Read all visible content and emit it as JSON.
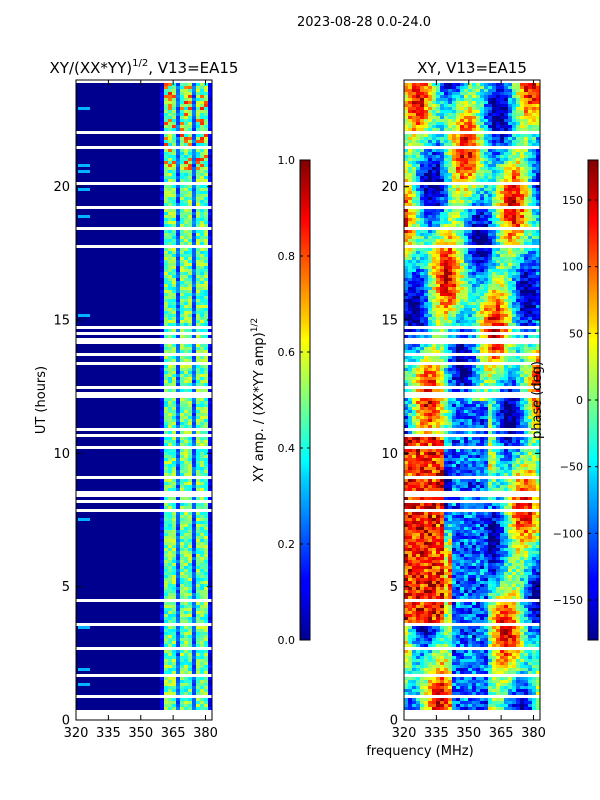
{
  "figure": {
    "suptitle": "2023-08-28 0.0-24.0",
    "shared_xlabel": "frequency (MHz)"
  },
  "chart_data": [
    {
      "type": "heatmap",
      "title_prefix": "XY/(XX*YY)",
      "title_exponent": "1/2",
      "title_suffix": ", V13=EA15",
      "ylabel": "UT (hours)",
      "x_ticks": [
        320,
        335,
        350,
        365,
        380
      ],
      "xlim": [
        320,
        383
      ],
      "y_ticks": [
        0,
        5,
        10,
        15,
        20
      ],
      "ylim": [
        0,
        24
      ],
      "colorbar": {
        "label_prefix": "XY amp. / (XX*YY amp)",
        "label_exponent": "1/2",
        "ticks": [
          0.0,
          0.2,
          0.4,
          0.6,
          0.8,
          1.0
        ],
        "tick_labels": [
          "0.0",
          "0.2",
          "0.4",
          "0.6",
          "0.8",
          "1.0"
        ],
        "range": [
          0.0,
          1.0
        ],
        "colormap": "jet"
      },
      "colors": {
        "background": "#00008f",
        "bright_band": "#7fffff",
        "gap": "#ffffff"
      }
    },
    {
      "type": "heatmap",
      "title": "XY, V13=EA15",
      "x_ticks": [
        320,
        335,
        350,
        365,
        380
      ],
      "xlim": [
        320,
        383
      ],
      "y_ticks": [
        0,
        5,
        10,
        15,
        20
      ],
      "ylim": [
        0,
        24
      ],
      "colorbar": {
        "label": "phase (deg)",
        "ticks": [
          -150,
          -100,
          -50,
          0,
          50,
          100,
          150
        ],
        "tick_labels": [
          "−150",
          "−100",
          "−50",
          "0",
          "50",
          "100",
          "150"
        ],
        "range": [
          -180,
          180
        ],
        "colormap": "jet"
      }
    }
  ]
}
